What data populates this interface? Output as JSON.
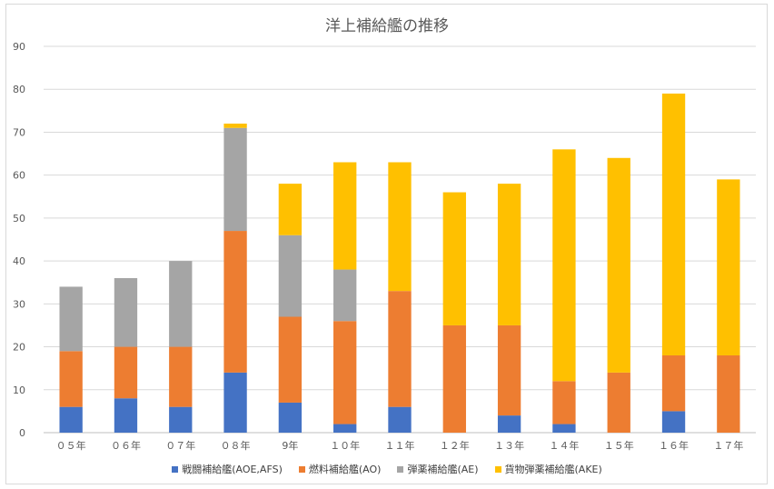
{
  "chart_data": {
    "type": "bar",
    "stacked": true,
    "title": "洋上補給艦の推移",
    "categories": [
      "０５年",
      "０６年",
      "０７年",
      "０８年",
      "9年",
      "１０年",
      "１１年",
      "１２年",
      "１３年",
      "１４年",
      "１５年",
      "１６年",
      "１７年"
    ],
    "ylim": [
      0,
      90
    ],
    "yticks": [
      0,
      10,
      20,
      30,
      40,
      50,
      60,
      70,
      80,
      90
    ],
    "ytick_labels": [
      "0",
      "10",
      "20",
      "30",
      "40",
      "50",
      "60",
      "70",
      "80",
      "90"
    ],
    "grid": true,
    "legend_position": "bottom",
    "series": [
      {
        "name": "戦闘補給艦(AOE,AFS)",
        "color": "#4472c4",
        "values": [
          6,
          8,
          6,
          14,
          7,
          2,
          6,
          0,
          4,
          2,
          0,
          5,
          0
        ]
      },
      {
        "name": "燃料補給艦(AO)",
        "color": "#ed7d31",
        "values": [
          13,
          12,
          14,
          33,
          20,
          24,
          27,
          25,
          21,
          10,
          14,
          13,
          18
        ]
      },
      {
        "name": "弾薬補給艦(AE)",
        "color": "#a5a5a5",
        "values": [
          15,
          16,
          20,
          24,
          19,
          12,
          0,
          0,
          0,
          0,
          0,
          0,
          0
        ]
      },
      {
        "name": "貨物弾薬補給艦(AKE)",
        "color": "#ffc000",
        "values": [
          0,
          0,
          0,
          1,
          12,
          25,
          30,
          31,
          33,
          54,
          50,
          61,
          41
        ]
      }
    ]
  }
}
